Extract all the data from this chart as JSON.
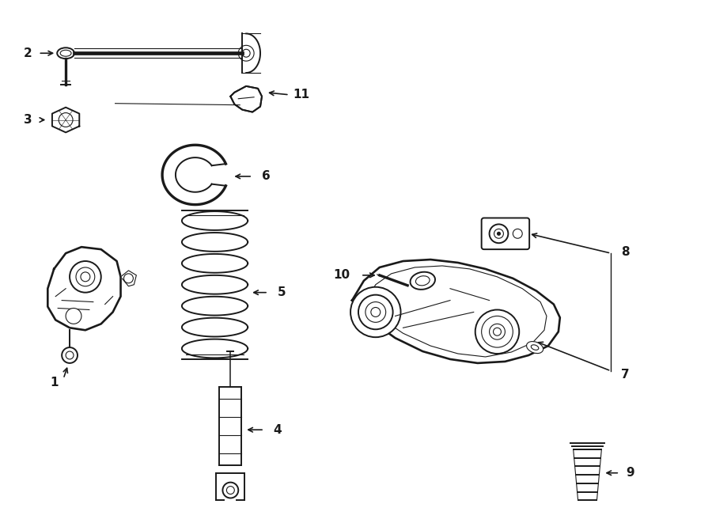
{
  "background_color": "#ffffff",
  "line_color": "#1a1a1a",
  "lw": 1.4,
  "tlw": 0.8,
  "fig_w": 9.0,
  "fig_h": 6.61,
  "dpi": 100
}
